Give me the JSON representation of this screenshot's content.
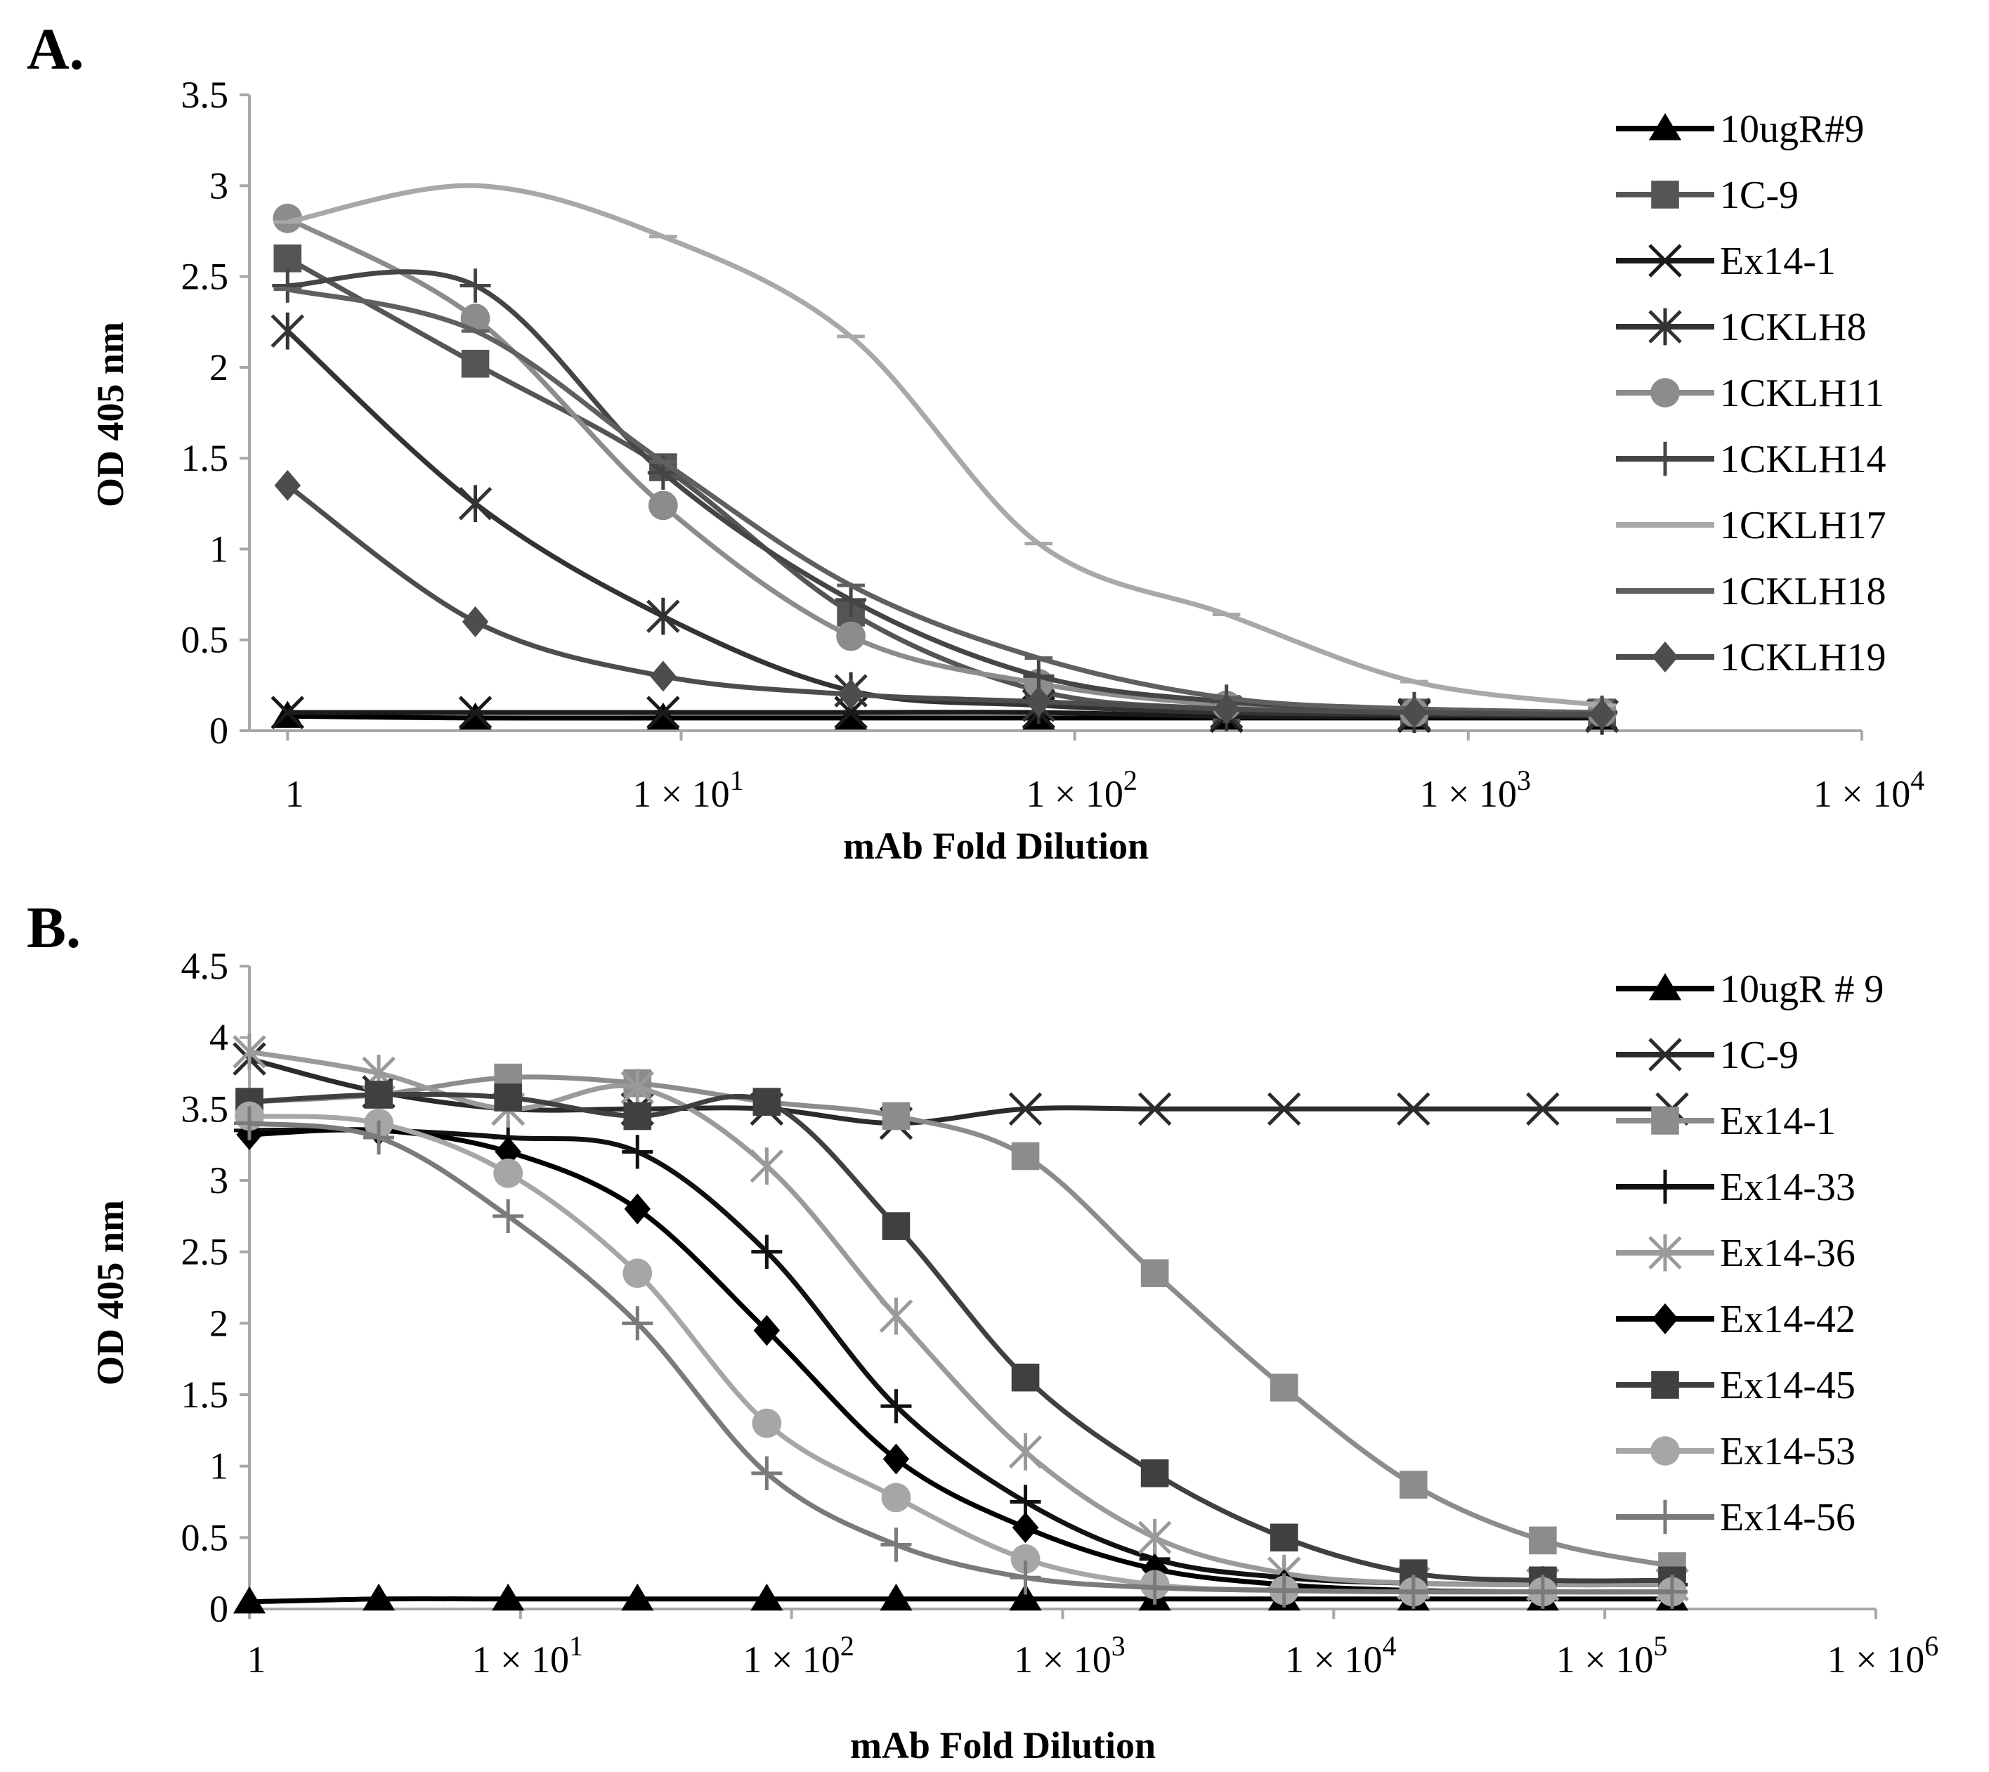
{
  "figure_labels": {
    "panel_a": "A.",
    "panel_b": "B."
  },
  "chart_data": [
    {
      "panel": "A",
      "type": "line",
      "xscale": "log",
      "xlim": [
        0.8,
        10000
      ],
      "ylim": [
        0,
        3.5
      ],
      "yticks": [
        "0",
        "0.5",
        "1",
        "1.5",
        "2",
        "2.5",
        "3",
        "3.5"
      ],
      "ytick_values": [
        0,
        0.5,
        1,
        1.5,
        2,
        2.5,
        3,
        3.5
      ],
      "xticks": [
        {
          "value": 1,
          "label": "1"
        },
        {
          "value": 10,
          "label": "1 × 10",
          "sup": "1"
        },
        {
          "value": 100,
          "label": "1 × 10",
          "sup": "2"
        },
        {
          "value": 1000,
          "label": "1 × 10",
          "sup": "3"
        },
        {
          "value": 10000,
          "label": "1 × 10",
          "sup": "4"
        }
      ],
      "xlabel": "mAb Fold Dilution",
      "ylabel": "OD 405 nm",
      "legend_position": "top-right",
      "x": [
        1,
        3,
        9,
        27,
        81,
        243,
        729,
        2187
      ],
      "series": [
        {
          "name": "10ugR#9",
          "marker": "triangle",
          "color": "#000000",
          "values": [
            0.08,
            0.07,
            0.07,
            0.07,
            0.07,
            0.07,
            0.07,
            0.07
          ]
        },
        {
          "name": "1C-9",
          "marker": "square",
          "color": "#555555",
          "values": [
            2.6,
            2.02,
            1.45,
            0.65,
            0.22,
            0.12,
            0.1,
            0.1
          ]
        },
        {
          "name": "Ex14-1",
          "marker": "x",
          "color": "#1a1a1a",
          "values": [
            0.1,
            0.1,
            0.1,
            0.1,
            0.1,
            0.08,
            0.08,
            0.08
          ]
        },
        {
          "name": "1CKLH8",
          "marker": "star",
          "color": "#333333",
          "values": [
            2.2,
            1.25,
            0.63,
            0.22,
            0.14,
            0.1,
            0.09,
            0.08
          ]
        },
        {
          "name": "1CKLH11",
          "marker": "circle",
          "color": "#8c8c8c",
          "values": [
            2.82,
            2.27,
            1.24,
            0.52,
            0.26,
            0.14,
            0.1,
            0.1
          ]
        },
        {
          "name": "1CKLH14",
          "marker": "plus",
          "color": "#454545",
          "values": [
            2.45,
            2.45,
            1.42,
            0.72,
            0.3,
            0.16,
            0.12,
            0.1
          ]
        },
        {
          "name": "1CKLH17",
          "marker": "dash",
          "color": "#a8a8a8",
          "values": [
            2.8,
            3.0,
            2.72,
            2.17,
            1.03,
            0.64,
            0.27,
            0.14
          ]
        },
        {
          "name": "1CKLH18",
          "marker": "dash",
          "color": "#606060",
          "values": [
            2.43,
            2.2,
            1.48,
            0.8,
            0.4,
            0.18,
            0.12,
            0.1
          ]
        },
        {
          "name": "1CKLH19",
          "marker": "diamond",
          "color": "#4d4d4d",
          "values": [
            1.35,
            0.6,
            0.3,
            0.2,
            0.16,
            0.12,
            0.1,
            0.09
          ]
        }
      ]
    },
    {
      "panel": "B",
      "type": "line",
      "xscale": "log",
      "xlim": [
        1,
        1000000
      ],
      "ylim": [
        0,
        4.5
      ],
      "yticks": [
        "0",
        "0.5",
        "1",
        "1.5",
        "2",
        "2.5",
        "3",
        "3.5",
        "4",
        "4.5"
      ],
      "ytick_values": [
        0,
        0.5,
        1,
        1.5,
        2,
        2.5,
        3,
        3.5,
        4,
        4.5
      ],
      "xticks": [
        {
          "value": 1,
          "label": "1"
        },
        {
          "value": 10,
          "label": "1 × 10",
          "sup": "1"
        },
        {
          "value": 100,
          "label": "1 × 10",
          "sup": "2"
        },
        {
          "value": 1000,
          "label": "1 × 10",
          "sup": "3"
        },
        {
          "value": 10000,
          "label": "1 × 10",
          "sup": "4"
        },
        {
          "value": 100000,
          "label": "1 × 10",
          "sup": "5"
        },
        {
          "value": 1000000,
          "label": "1 × 10",
          "sup": "6"
        }
      ],
      "xlabel": "mAb Fold Dilution",
      "ylabel": "OD 405 nm",
      "legend_position": "top-right",
      "x": [
        1,
        3,
        9,
        27,
        81,
        243,
        729,
        2187,
        6561,
        19683,
        59049,
        177147
      ],
      "series": [
        {
          "name": "10ugR # 9",
          "marker": "triangle",
          "color": "#000000",
          "values": [
            0.05,
            0.07,
            0.07,
            0.07,
            0.07,
            0.07,
            0.07,
            0.07,
            0.07,
            0.07,
            0.07,
            0.07
          ]
        },
        {
          "name": "1C-9",
          "marker": "x",
          "color": "#2b2b2b",
          "values": [
            3.85,
            3.62,
            3.5,
            3.5,
            3.5,
            3.4,
            3.5,
            3.5,
            3.5,
            3.5,
            3.5,
            3.5
          ]
        },
        {
          "name": "Ex14-1",
          "marker": "square",
          "color": "#8c8c8c",
          "values": [
            3.55,
            3.6,
            3.72,
            3.68,
            3.55,
            3.45,
            3.17,
            2.35,
            1.55,
            0.87,
            0.48,
            0.3
          ]
        },
        {
          "name": "Ex14-33",
          "marker": "plus",
          "color": "#111111",
          "values": [
            3.35,
            3.35,
            3.3,
            3.2,
            2.5,
            1.42,
            0.75,
            0.35,
            0.22,
            0.18,
            0.17,
            0.17
          ]
        },
        {
          "name": "Ex14-36",
          "marker": "star",
          "color": "#9a9a9a",
          "values": [
            3.9,
            3.75,
            3.5,
            3.65,
            3.1,
            2.05,
            1.1,
            0.5,
            0.25,
            0.18,
            0.17,
            0.17
          ]
        },
        {
          "name": "Ex14-42",
          "marker": "diamond",
          "color": "#000000",
          "values": [
            3.32,
            3.35,
            3.2,
            2.8,
            1.95,
            1.05,
            0.57,
            0.28,
            0.17,
            0.13,
            0.12,
            0.12
          ]
        },
        {
          "name": "Ex14-45",
          "marker": "square",
          "color": "#404040",
          "values": [
            3.55,
            3.6,
            3.58,
            3.45,
            3.55,
            2.68,
            1.62,
            0.95,
            0.5,
            0.25,
            0.2,
            0.2
          ]
        },
        {
          "name": "Ex14-53",
          "marker": "circle",
          "color": "#a6a6a6",
          "values": [
            3.45,
            3.4,
            3.05,
            2.35,
            1.3,
            0.78,
            0.35,
            0.17,
            0.13,
            0.12,
            0.12,
            0.12
          ]
        },
        {
          "name": "Ex14-56",
          "marker": "plus",
          "color": "#7a7a7a",
          "values": [
            3.4,
            3.3,
            2.75,
            2.0,
            0.95,
            0.45,
            0.22,
            0.15,
            0.13,
            0.12,
            0.12,
            0.12
          ]
        }
      ]
    }
  ]
}
